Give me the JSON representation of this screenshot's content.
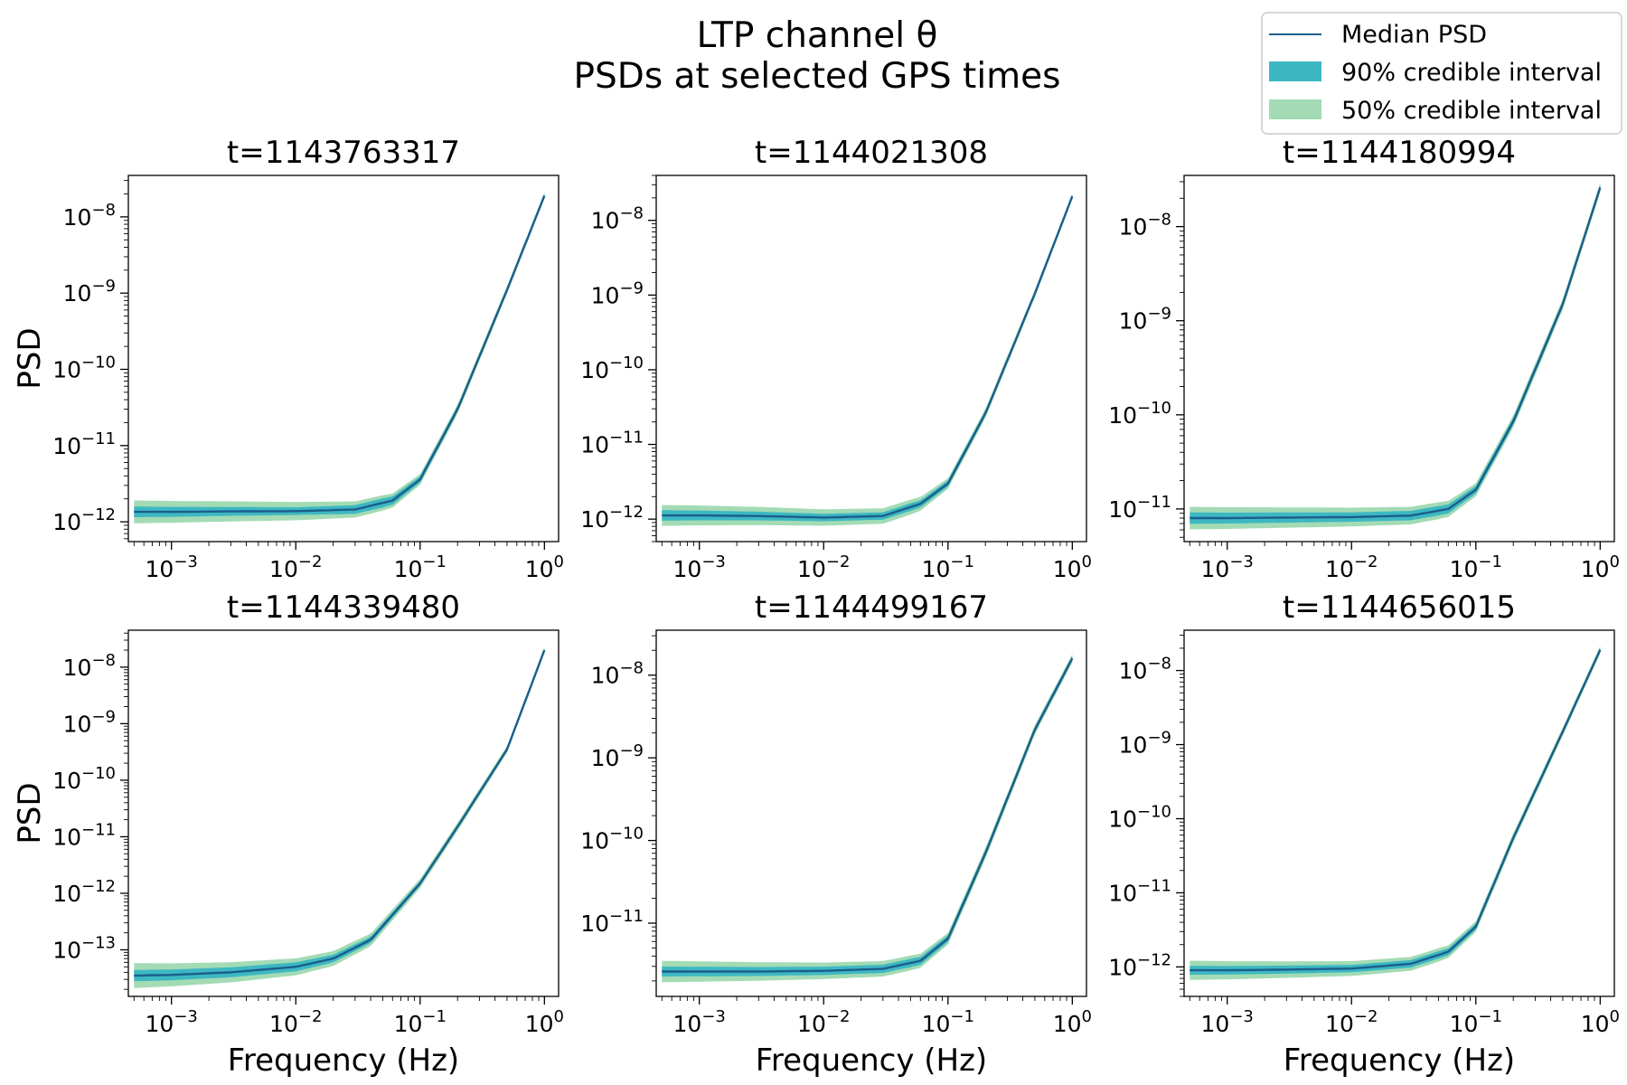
{
  "figure": {
    "title_line1": "LTP channel θ",
    "title_line2": "PSDs at selected GPS times",
    "shared_xlabel": "Frequency (Hz)",
    "shared_ylabel": "PSD"
  },
  "legend": {
    "placement": "top-right",
    "items": [
      {
        "label": "Median PSD",
        "kind": "line",
        "color": "#1b5e8c"
      },
      {
        "label": "90% credible interval",
        "kind": "patch",
        "color": "#3db8c2"
      },
      {
        "label": "50% credible interval",
        "kind": "patch",
        "color": "#a3dbb4"
      }
    ]
  },
  "colors": {
    "median": "#1b5e8c",
    "ci90": "#3db8c2",
    "ci50": "#a3dbb4"
  },
  "chart_data": [
    {
      "type": "line",
      "title": "t=1143763317",
      "xlabel": "",
      "ylabel": "PSD",
      "xscale": "log",
      "yscale": "log",
      "xlim": [
        0.00045,
        1.3
      ],
      "ylim": [
        5.5e-13,
        3.5e-08
      ],
      "xticks": [
        0.001,
        0.01,
        0.1,
        1
      ],
      "xticklabels": [
        "10^-3",
        "10^-2",
        "10^-1",
        "10^0"
      ],
      "yticks": [
        1e-12,
        1e-11,
        1e-10,
        1e-09,
        1e-08
      ],
      "yticklabels": [
        "10^-12",
        "10^-11",
        "10^-10",
        "10^-9",
        "10^-8"
      ],
      "grid": false,
      "median": {
        "x": [
          0.0005,
          0.001,
          0.003,
          0.01,
          0.03,
          0.06,
          0.1,
          0.2,
          0.5,
          1.0
        ],
        "y": [
          1.35e-12,
          1.35e-12,
          1.37e-12,
          1.38e-12,
          1.45e-12,
          1.9e-12,
          3.6e-12,
          3e-11,
          1.1e-09,
          1.9e-08
        ]
      },
      "band_width_dex": {
        "x": [
          0.0005,
          0.01,
          0.05,
          0.1,
          1.0
        ],
        "ci90": [
          0.07,
          0.05,
          0.06,
          0.04,
          0.025
        ],
        "ci50": [
          0.15,
          0.12,
          0.1,
          0.07,
          0.04
        ]
      }
    },
    {
      "type": "line",
      "title": "t=1144021308",
      "xlabel": "",
      "ylabel": "",
      "xscale": "log",
      "yscale": "log",
      "xlim": [
        0.00045,
        1.3
      ],
      "ylim": [
        5e-13,
        4e-08
      ],
      "xticks": [
        0.001,
        0.01,
        0.1,
        1
      ],
      "xticklabels": [
        "10^-3",
        "10^-2",
        "10^-1",
        "10^0"
      ],
      "yticks": [
        1e-12,
        1e-11,
        1e-10,
        1e-09,
        1e-08
      ],
      "yticklabels": [
        "10^-12",
        "10^-11",
        "10^-10",
        "10^-9",
        "10^-8"
      ],
      "grid": false,
      "median": {
        "x": [
          0.0005,
          0.001,
          0.003,
          0.01,
          0.03,
          0.06,
          0.1,
          0.2,
          0.5,
          1.0
        ],
        "y": [
          1.12e-12,
          1.12e-12,
          1.1e-12,
          1.05e-12,
          1.1e-12,
          1.6e-12,
          3e-12,
          2.6e-11,
          1.05e-09,
          2.1e-08
        ]
      },
      "band_width_dex": {
        "x": [
          0.0005,
          0.01,
          0.05,
          0.1,
          1.0
        ],
        "ci90": [
          0.07,
          0.05,
          0.05,
          0.04,
          0.025
        ],
        "ci50": [
          0.14,
          0.11,
          0.1,
          0.07,
          0.04
        ]
      }
    },
    {
      "type": "line",
      "title": "t=1144180994",
      "xlabel": "",
      "ylabel": "",
      "xscale": "log",
      "yscale": "log",
      "xlim": [
        0.00045,
        1.3
      ],
      "ylim": [
        4.5e-12,
        3.5e-08
      ],
      "xticks": [
        0.001,
        0.01,
        0.1,
        1
      ],
      "xticklabels": [
        "10^-3",
        "10^-2",
        "10^-1",
        "10^0"
      ],
      "yticks": [
        1e-11,
        1e-10,
        1e-09,
        1e-08
      ],
      "yticklabels": [
        "10^-11",
        "10^-10",
        "10^-9",
        "10^-8"
      ],
      "grid": false,
      "median": {
        "x": [
          0.0005,
          0.001,
          0.003,
          0.01,
          0.03,
          0.06,
          0.1,
          0.2,
          0.5,
          1.0
        ],
        "y": [
          8e-12,
          8e-12,
          8.1e-12,
          8.2e-12,
          8.5e-12,
          1e-11,
          1.6e-11,
          8.5e-11,
          1.5e-09,
          2.6e-08
        ]
      },
      "band_width_dex": {
        "x": [
          0.0005,
          0.01,
          0.05,
          0.1,
          1.0
        ],
        "ci90": [
          0.06,
          0.05,
          0.05,
          0.04,
          0.03
        ],
        "ci50": [
          0.12,
          0.1,
          0.09,
          0.07,
          0.05
        ]
      }
    },
    {
      "type": "line",
      "title": "t=1144339480",
      "xlabel": "Frequency (Hz)",
      "ylabel": "PSD",
      "xscale": "log",
      "yscale": "log",
      "xlim": [
        0.00045,
        1.3
      ],
      "ylim": [
        1.5e-14,
        4.5e-08
      ],
      "xticks": [
        0.001,
        0.01,
        0.1,
        1
      ],
      "xticklabels": [
        "10^-3",
        "10^-2",
        "10^-1",
        "10^0"
      ],
      "yticks": [
        1e-13,
        1e-12,
        1e-11,
        1e-10,
        1e-09,
        1e-08
      ],
      "yticklabels": [
        "10^-13",
        "10^-12",
        "10^-11",
        "10^-10",
        "10^-9",
        "10^-8"
      ],
      "grid": false,
      "median": {
        "x": [
          0.0005,
          0.001,
          0.003,
          0.01,
          0.02,
          0.04,
          0.1,
          0.2,
          0.5,
          1.0
        ],
        "y": [
          3.5e-14,
          3.6e-14,
          4e-14,
          5e-14,
          7e-14,
          1.5e-13,
          1.5e-12,
          1.5e-11,
          3.5e-10,
          2e-08
        ]
      },
      "band_width_dex": {
        "x": [
          0.0005,
          0.01,
          0.03,
          0.1,
          1.0
        ],
        "ci90": [
          0.1,
          0.08,
          0.06,
          0.04,
          0.03
        ],
        "ci50": [
          0.22,
          0.15,
          0.12,
          0.08,
          0.05
        ]
      }
    },
    {
      "type": "line",
      "title": "t=1144499167",
      "xlabel": "Frequency (Hz)",
      "ylabel": "",
      "xscale": "log",
      "yscale": "log",
      "xlim": [
        0.00045,
        1.3
      ],
      "ylim": [
        1.3e-12,
        3.5e-08
      ],
      "xticks": [
        0.001,
        0.01,
        0.1,
        1
      ],
      "xticklabels": [
        "10^-3",
        "10^-2",
        "10^-1",
        "10^0"
      ],
      "yticks": [
        1e-11,
        1e-10,
        1e-09,
        1e-08
      ],
      "yticklabels": [
        "10^-11",
        "10^-10",
        "10^-9",
        "10^-8"
      ],
      "grid": false,
      "median": {
        "x": [
          0.0005,
          0.001,
          0.003,
          0.01,
          0.03,
          0.06,
          0.1,
          0.2,
          0.5,
          1.0
        ],
        "y": [
          2.6e-12,
          2.6e-12,
          2.6e-12,
          2.65e-12,
          2.8e-12,
          3.5e-12,
          6.5e-12,
          7e-11,
          2.2e-09,
          1.6e-08
        ]
      },
      "band_width_dex": {
        "x": [
          0.0005,
          0.01,
          0.05,
          0.1,
          1.0
        ],
        "ci90": [
          0.06,
          0.05,
          0.05,
          0.04,
          0.03
        ],
        "ci50": [
          0.13,
          0.1,
          0.09,
          0.07,
          0.05
        ]
      }
    },
    {
      "type": "line",
      "title": "t=1144656015",
      "xlabel": "Frequency (Hz)",
      "ylabel": "",
      "xscale": "log",
      "yscale": "log",
      "xlim": [
        0.00045,
        1.3
      ],
      "ylim": [
        4e-13,
        3.5e-08
      ],
      "xticks": [
        0.001,
        0.01,
        0.1,
        1
      ],
      "xticklabels": [
        "10^-3",
        "10^-2",
        "10^-1",
        "10^0"
      ],
      "yticks": [
        1e-12,
        1e-11,
        1e-10,
        1e-09,
        1e-08
      ],
      "yticklabels": [
        "10^-12",
        "10^-11",
        "10^-10",
        "10^-9",
        "10^-8"
      ],
      "grid": false,
      "median": {
        "x": [
          0.0005,
          0.001,
          0.003,
          0.01,
          0.03,
          0.06,
          0.1,
          0.2,
          0.5,
          1.0
        ],
        "y": [
          9e-13,
          9e-13,
          9.2e-13,
          9.5e-13,
          1.1e-12,
          1.6e-12,
          3.5e-12,
          5.5e-11,
          1.5e-09,
          1.9e-08
        ]
      },
      "band_width_dex": {
        "x": [
          0.0005,
          0.01,
          0.05,
          0.1,
          1.0
        ],
        "ci90": [
          0.06,
          0.05,
          0.05,
          0.04,
          0.03
        ],
        "ci50": [
          0.13,
          0.1,
          0.09,
          0.07,
          0.05
        ]
      }
    }
  ]
}
